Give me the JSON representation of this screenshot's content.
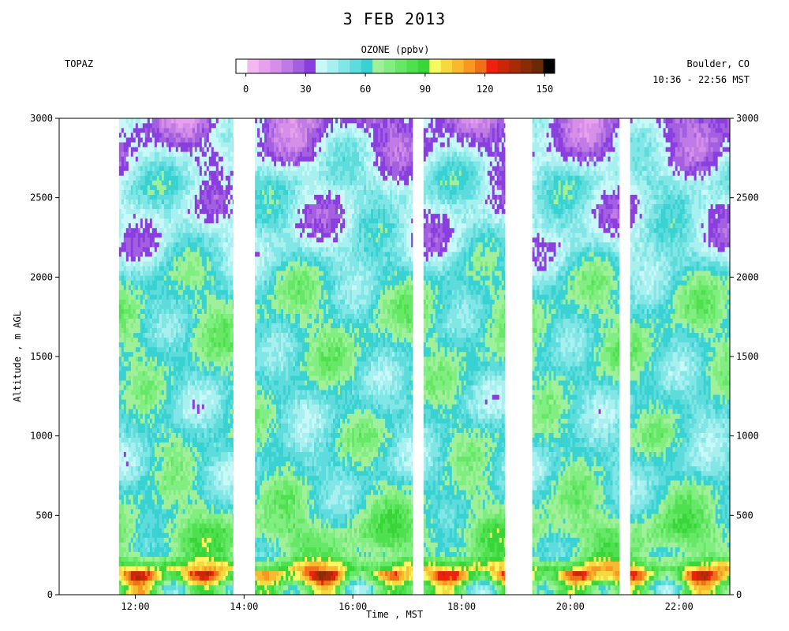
{
  "header": {
    "title": "3 FEB 2013",
    "instrument": "TOPAZ",
    "location": "Boulder, CO",
    "time_span": "10:36 - 22:56 MST"
  },
  "colorbar": {
    "title": "OZONE (ppbv)",
    "ticks": [
      0,
      30,
      60,
      90,
      120,
      150
    ],
    "min": -5,
    "max": 155,
    "colors": [
      "#ffffff",
      "#f4b8f0",
      "#e6a0ee",
      "#d68ee8",
      "#c07ae6",
      "#a45ee0",
      "#8a3ee0",
      "#c8f8f8",
      "#a8f0f0",
      "#80e6e6",
      "#5edcdc",
      "#38d2d2",
      "#a0f09a",
      "#80ee80",
      "#66e866",
      "#4ee04e",
      "#38d638",
      "#f8f860",
      "#f8d840",
      "#f8b830",
      "#f89820",
      "#f07018",
      "#f02010",
      "#c82808",
      "#a82a06",
      "#8a2a06",
      "#6a2a06",
      "#000000"
    ]
  },
  "chart_data": {
    "type": "heatmap",
    "title": "3 FEB 2013",
    "xlabel": "Time , MST",
    "ylabel": "Altitude , m AGL",
    "xlim": [
      "10:36",
      "22:56"
    ],
    "ylim": [
      0,
      3000
    ],
    "x_ticks": [
      "12:00",
      "14:00",
      "16:00",
      "18:00",
      "20:00",
      "22:00"
    ],
    "y_ticks": [
      0,
      500,
      1000,
      1500,
      2000,
      2500,
      3000
    ],
    "color_variable": "OZONE (ppbv)",
    "color_range": [
      0,
      150
    ],
    "data_segments": [
      {
        "start": "11:42",
        "end": "13:48"
      },
      {
        "start": "14:12",
        "end": "17:06"
      },
      {
        "start": "17:18",
        "end": "18:48"
      },
      {
        "start": "19:18",
        "end": "20:54"
      },
      {
        "start": "21:06",
        "end": "22:56"
      }
    ],
    "altitude_profile_ppbv": [
      {
        "altitude": 50,
        "ozone": 75
      },
      {
        "altitude": 120,
        "ozone": 110
      },
      {
        "altitude": 250,
        "ozone": 70
      },
      {
        "altitude": 400,
        "ozone": 75
      },
      {
        "altitude": 550,
        "ozone": 65
      },
      {
        "altitude": 800,
        "ozone": 55
      },
      {
        "altitude": 1000,
        "ozone": 60
      },
      {
        "altitude": 1200,
        "ozone": 55
      },
      {
        "altitude": 1500,
        "ozone": 62
      },
      {
        "altitude": 1800,
        "ozone": 64
      },
      {
        "altitude": 2000,
        "ozone": 58
      },
      {
        "altitude": 2200,
        "ozone": 45
      },
      {
        "altitude": 2400,
        "ozone": 42
      },
      {
        "altitude": 2600,
        "ozone": 48
      },
      {
        "altitude": 2800,
        "ozone": 35
      },
      {
        "altitude": 3000,
        "ozone": 28
      }
    ]
  }
}
